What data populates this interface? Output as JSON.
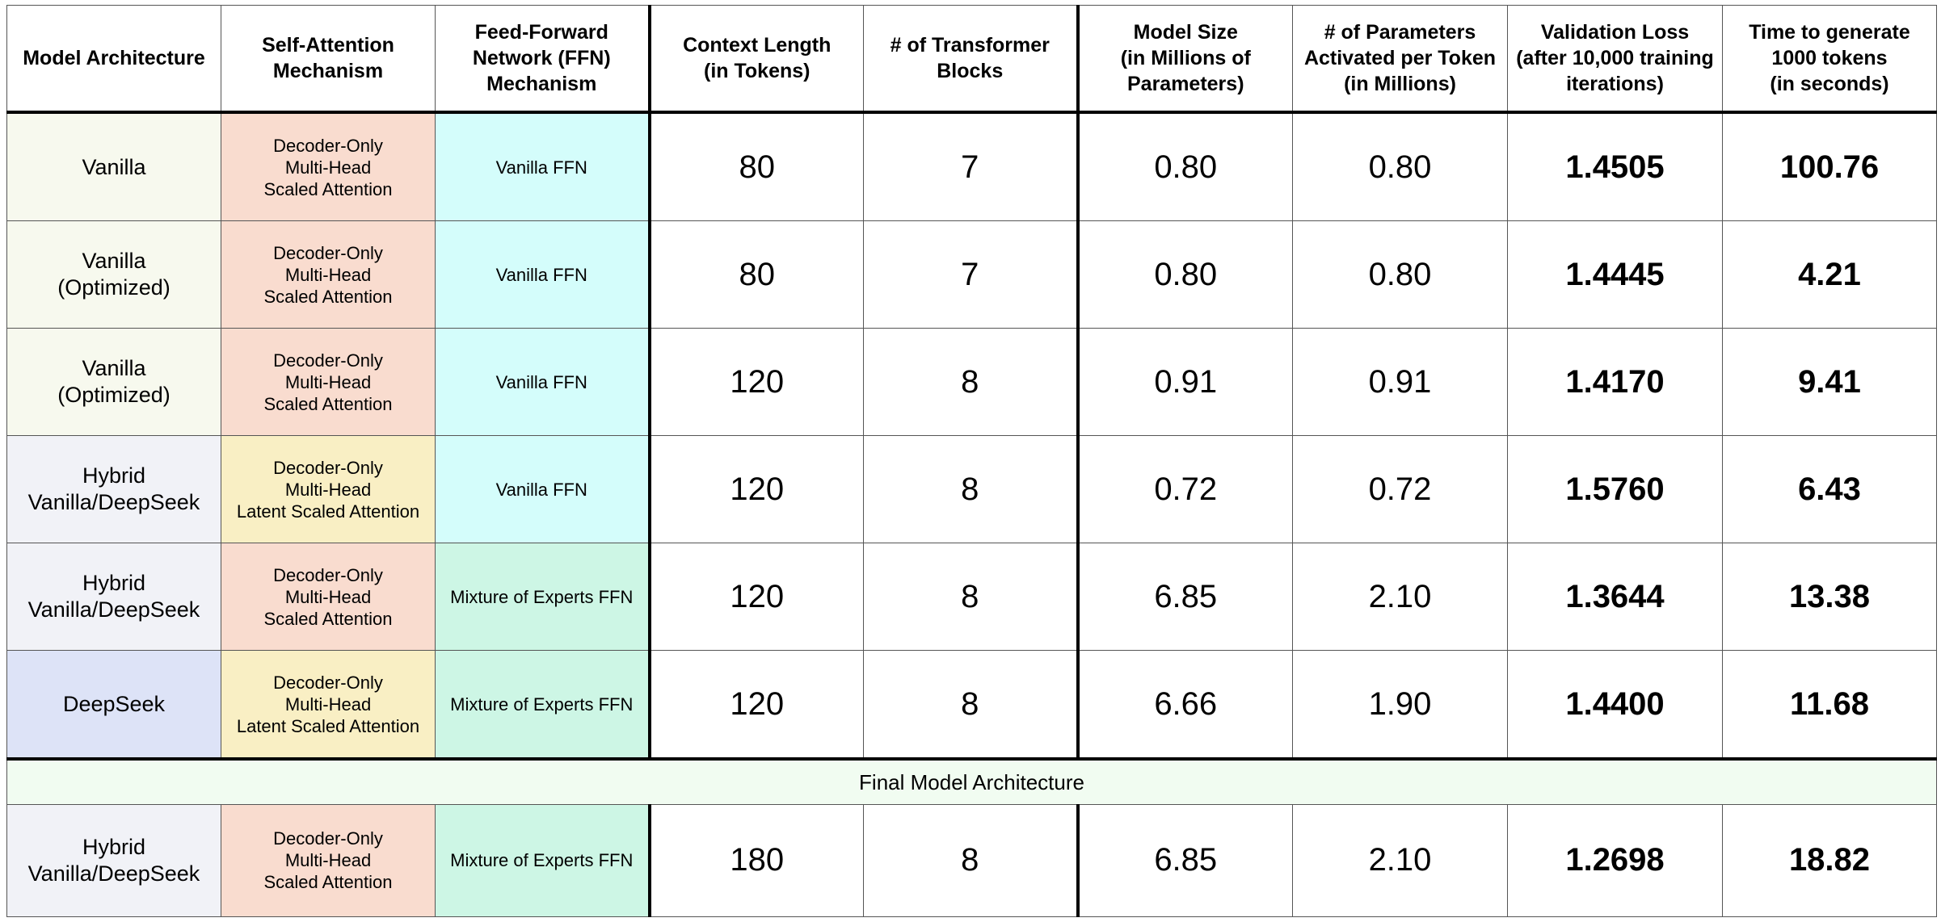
{
  "colors": {
    "arch_vanilla": "#f7f9ee",
    "arch_hybrid": "#f1f2f7",
    "arch_deepseek": "#dde3f7",
    "attn_standard": "#f9dccf",
    "attn_latent": "#f9efc4",
    "ffn_vanilla": "#d4fdfb",
    "ffn_moe": "#cdf6e5",
    "banner_bg": "#f1fcf1"
  },
  "headers": [
    [
      "Model Architecture"
    ],
    [
      "Self-Attention",
      "Mechanism"
    ],
    [
      "Feed-Forward",
      "Network (FFN)",
      "Mechanism"
    ],
    [
      "Context Length",
      "(in Tokens)"
    ],
    [
      "# of Transformer",
      "Blocks"
    ],
    [
      "Model Size",
      "(in Millions of",
      "Parameters)"
    ],
    [
      "# of Parameters",
      "Activated per Token",
      "(in Millions)"
    ],
    [
      "Validation Loss",
      "(after 10,000 training",
      "iterations)"
    ],
    [
      "Time to generate",
      "1000 tokens",
      "(in seconds)"
    ]
  ],
  "rows": [
    {
      "arch": [
        "Vanilla"
      ],
      "arch_color": "#f7f9ee",
      "attn": [
        "Decoder-Only",
        "Multi-Head",
        "Scaled Attention"
      ],
      "attn_color": "#f9dccf",
      "ffn": "Vanilla FFN",
      "ffn_color": "#d4fdfb",
      "context": "80",
      "blocks": "7",
      "size": "0.80",
      "activated": "0.80",
      "loss": "1.4505",
      "time": "100.76"
    },
    {
      "arch": [
        "Vanilla",
        "(Optimized)"
      ],
      "arch_color": "#f7f9ee",
      "attn": [
        "Decoder-Only",
        "Multi-Head",
        "Scaled Attention"
      ],
      "attn_color": "#f9dccf",
      "ffn": "Vanilla FFN",
      "ffn_color": "#d4fdfb",
      "context": "80",
      "blocks": "7",
      "size": "0.80",
      "activated": "0.80",
      "loss": "1.4445",
      "time": "4.21"
    },
    {
      "arch": [
        "Vanilla",
        "(Optimized)"
      ],
      "arch_color": "#f7f9ee",
      "attn": [
        "Decoder-Only",
        "Multi-Head",
        "Scaled Attention"
      ],
      "attn_color": "#f9dccf",
      "ffn": "Vanilla FFN",
      "ffn_color": "#d4fdfb",
      "context": "120",
      "blocks": "8",
      "size": "0.91",
      "activated": "0.91",
      "loss": "1.4170",
      "time": "9.41"
    },
    {
      "arch": [
        "Hybrid",
        "Vanilla/DeepSeek"
      ],
      "arch_color": "#f1f2f7",
      "attn": [
        "Decoder-Only",
        "Multi-Head",
        "Latent Scaled Attention"
      ],
      "attn_color": "#f9efc4",
      "ffn": "Vanilla FFN",
      "ffn_color": "#d4fdfb",
      "context": "120",
      "blocks": "8",
      "size": "0.72",
      "activated": "0.72",
      "loss": "1.5760",
      "time": "6.43"
    },
    {
      "arch": [
        "Hybrid",
        "Vanilla/DeepSeek"
      ],
      "arch_color": "#f1f2f7",
      "attn": [
        "Decoder-Only",
        "Multi-Head",
        "Scaled Attention"
      ],
      "attn_color": "#f9dccf",
      "ffn": "Mixture of Experts FFN",
      "ffn_color": "#cdf6e5",
      "context": "120",
      "blocks": "8",
      "size": "6.85",
      "activated": "2.10",
      "loss": "1.3644",
      "time": "13.38"
    },
    {
      "arch": [
        "DeepSeek"
      ],
      "arch_color": "#dde3f7",
      "attn": [
        "Decoder-Only",
        "Multi-Head",
        "Latent Scaled Attention"
      ],
      "attn_color": "#f9efc4",
      "ffn": "Mixture of Experts FFN",
      "ffn_color": "#cdf6e5",
      "context": "120",
      "blocks": "8",
      "size": "6.66",
      "activated": "1.90",
      "loss": "1.4400",
      "time": "11.68"
    }
  ],
  "banner": "Final Model Architecture",
  "final": {
    "arch": [
      "Hybrid",
      "Vanilla/DeepSeek"
    ],
    "arch_color": "#f1f2f7",
    "attn": [
      "Decoder-Only",
      "Multi-Head",
      "Scaled Attention"
    ],
    "attn_color": "#f9dccf",
    "ffn": "Mixture of Experts FFN",
    "ffn_color": "#cdf6e5",
    "context": "180",
    "blocks": "8",
    "size": "6.85",
    "activated": "2.10",
    "loss": "1.2698",
    "time": "18.82"
  }
}
